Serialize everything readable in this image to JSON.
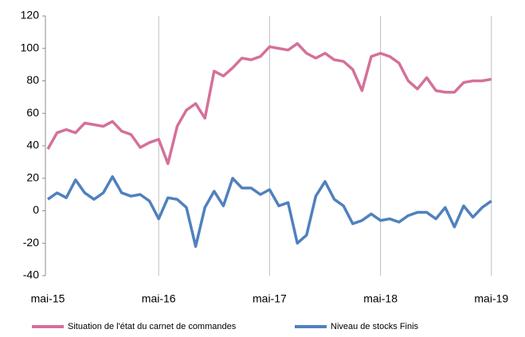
{
  "chart_data": {
    "type": "line",
    "categories": [
      "mai-15",
      null,
      null,
      null,
      null,
      null,
      null,
      null,
      null,
      null,
      null,
      null,
      "mai-16",
      null,
      null,
      null,
      null,
      null,
      null,
      null,
      null,
      null,
      null,
      null,
      "mai-17",
      null,
      null,
      null,
      null,
      null,
      null,
      null,
      null,
      null,
      null,
      null,
      "mai-18",
      null,
      null,
      null,
      null,
      null,
      null,
      null,
      null,
      null,
      null,
      null,
      "mai-19"
    ],
    "series": [
      {
        "name": "Situation de l'état du carnet de commandes",
        "color": "#d5709a",
        "values": [
          38,
          48,
          50,
          48,
          54,
          53,
          52,
          55,
          49,
          47,
          39,
          42,
          44,
          29,
          52,
          62,
          66,
          57,
          86,
          83,
          88,
          94,
          93,
          95,
          101,
          100,
          99,
          103,
          97,
          94,
          97,
          93,
          92,
          87,
          74,
          95,
          97,
          95,
          91,
          80,
          75,
          82,
          74,
          73,
          73,
          79,
          80,
          80,
          81
        ]
      },
      {
        "name": "Niveau de stocks Finis",
        "color": "#4f81bd",
        "values": [
          7,
          11,
          8,
          19,
          11,
          7,
          11,
          21,
          11,
          9,
          10,
          6,
          -5,
          8,
          7,
          2,
          -22,
          2,
          12,
          3,
          20,
          14,
          14,
          10,
          13,
          3,
          5,
          -20,
          -15,
          9,
          18,
          7,
          3,
          -8,
          -6,
          -2,
          -6,
          -5,
          -7,
          -3,
          -1,
          -1,
          -5,
          2,
          -10,
          3,
          -4,
          2,
          6
        ]
      }
    ],
    "ylim": [
      -40,
      120
    ],
    "yticks": [
      -40,
      -20,
      0,
      20,
      40,
      60,
      80,
      100,
      120
    ],
    "grid": "x",
    "legend": "bottom"
  }
}
